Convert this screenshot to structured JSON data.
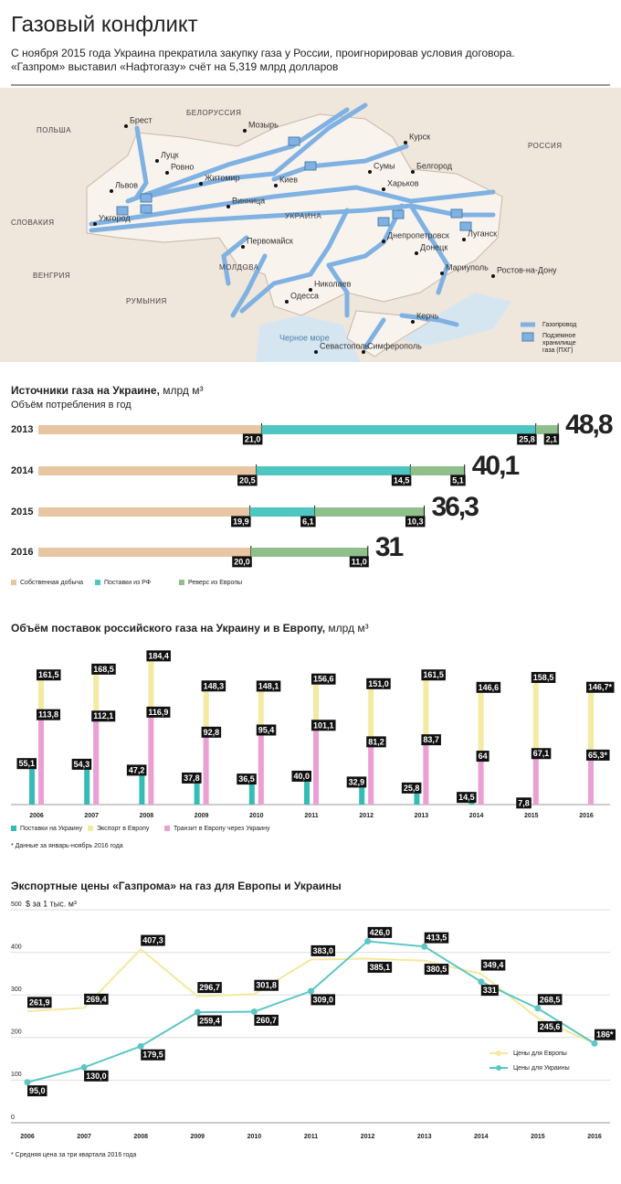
{
  "header": {
    "title": "Газовый конфликт",
    "subtitle": [
      "С ноября 2015 года Украина прекратила закупку газа у России, проигнорировав условия договора.",
      "«Газпром» выставил «Нафтогазу» счёт на 5,319 млрд долларов"
    ]
  },
  "map": {
    "countries": [
      "ПОЛЬША",
      "БЕЛОРУССИЯ",
      "РОССИЯ",
      "СЛОВАКИЯ",
      "ВЕНГРИЯ",
      "РУМЫНИЯ",
      "МОЛДОВА",
      "УКРАИНА"
    ],
    "sea": "Черное море",
    "cities": [
      "Брест",
      "Мозырь",
      "Курск",
      "Луцк",
      "Ровно",
      "Житомир",
      "Киев",
      "Сумы",
      "Белгород",
      "Львов",
      "Винница",
      "Харьков",
      "Ужгород",
      "Днепропетровск",
      "Луганск",
      "Первомайск",
      "Донецк",
      "Мариуполь",
      "Ростов-на-Дону",
      "Николаев",
      "Одесса",
      "Керчь",
      "Симферополь",
      "Севастополь"
    ],
    "legend": {
      "pipeline": "Газопровод",
      "storage": [
        "Подземное",
        "хранилище",
        "газа (ПХГ)"
      ]
    }
  },
  "chart_data": [
    {
      "type": "stacked-hbar",
      "title": "Источники газа на Украине,",
      "title_unit": "млрд м³",
      "subtitle": "Объём потребления в год",
      "categories": [
        "2013",
        "2014",
        "2015",
        "2016"
      ],
      "series": [
        {
          "name": "Собственная добыча",
          "color": "#e9c6a3",
          "values": [
            21.0,
            20.5,
            19.9,
            20.0
          ],
          "value_labels": [
            "21,0",
            "20,5",
            "19,9",
            "20,0"
          ]
        },
        {
          "name": "Поставки из РФ",
          "color": "#4fc6c2",
          "values": [
            25.8,
            14.5,
            6.1,
            null
          ],
          "value_labels": [
            "25,8",
            "14,5",
            "6,1",
            null
          ]
        },
        {
          "name": "Реверс из Европы",
          "color": "#8fc08c",
          "values": [
            2.1,
            5.1,
            10.3,
            11.0
          ],
          "value_labels": [
            "2,1",
            "5,1",
            "10,3",
            "11,0"
          ]
        }
      ],
      "totals": [
        48.8,
        40.1,
        36.3,
        31
      ],
      "total_labels": [
        "48,8",
        "40,1",
        "36,3",
        "31"
      ]
    },
    {
      "type": "grouped-bar",
      "title": "Объём поставок российского газа на Украину и в Европу,",
      "title_unit": "млрд м³",
      "categories": [
        "2006",
        "2007",
        "2008",
        "2009",
        "2010",
        "2011",
        "2012",
        "2013",
        "2014",
        "2015",
        "2016"
      ],
      "series": [
        {
          "name": "Поставки на Украину",
          "color": "#36bcb6",
          "values": [
            55.1,
            54.3,
            47.2,
            37.8,
            36.5,
            40.0,
            32.9,
            25.8,
            14.5,
            7.8,
            null
          ],
          "value_labels": [
            "55,1",
            "54,3",
            "47,2",
            "37,8",
            "36,5",
            "40,0",
            "32,9",
            "25,8",
            "14,5",
            "7,8",
            null
          ]
        },
        {
          "name": "Экспорт в Европу",
          "color": "#f4eaa2",
          "values": [
            161.5,
            168.5,
            184.4,
            148.3,
            148.1,
            156.6,
            151.0,
            161.5,
            146.6,
            158.5,
            146.7
          ],
          "value_labels": [
            "161,5",
            "168,5",
            "184,4",
            "148,3",
            "148,1",
            "156,6",
            "151,0",
            "161,5",
            "146,6",
            "158,5",
            "146,7*"
          ]
        },
        {
          "name": "Транзит в Европу через Украину",
          "color": "#eba0d4",
          "values": [
            113.8,
            112.1,
            116.9,
            92.8,
            95.4,
            101.1,
            81.2,
            83.7,
            64,
            67.1,
            65.3
          ],
          "value_labels": [
            "113,8",
            "112,1",
            "116,9",
            "92,8",
            "95,4",
            "101,1",
            "81,2",
            "83,7",
            "64",
            "67,1",
            "65,3*"
          ]
        }
      ],
      "footnote": "* Данные за январь-ноябрь 2016 года"
    },
    {
      "type": "line",
      "title": "Экспортные цены «Газпрома» на газ для Европы и Украины",
      "y_unit": "$ за 1 тыс. м³",
      "categories": [
        "2006",
        "2007",
        "2008",
        "2009",
        "2010",
        "2011",
        "2012",
        "2013",
        "2014",
        "2015",
        "2016"
      ],
      "ylim": [
        0,
        500
      ],
      "yticks": [
        0,
        100,
        200,
        300,
        400,
        500
      ],
      "grid": true,
      "series": [
        {
          "name": "Цены для Европы",
          "color": "#f4e89c",
          "values": [
            261.9,
            269.4,
            407.3,
            296.7,
            301.8,
            383.0,
            385.1,
            380.5,
            349.4,
            245.6,
            186
          ],
          "value_labels": [
            "261,9",
            "269,4",
            "407,3",
            "296,7",
            "301,8",
            "383,0",
            "385,1",
            "380,5",
            "349,4",
            "245,6",
            null
          ]
        },
        {
          "name": "Цены для Украины",
          "color": "#5cc6c4",
          "values": [
            95.0,
            130.0,
            179.5,
            259.4,
            260.7,
            309.0,
            426.0,
            413.5,
            331,
            268.5,
            186
          ],
          "value_labels": [
            "95,0",
            "130,0",
            "179,5",
            "259,4",
            "260,7",
            "309,0",
            "426,0",
            "413,5",
            "331",
            "268,5",
            "186*"
          ]
        }
      ],
      "footnote": "* Средняя цена за три квартала 2016 года"
    }
  ]
}
